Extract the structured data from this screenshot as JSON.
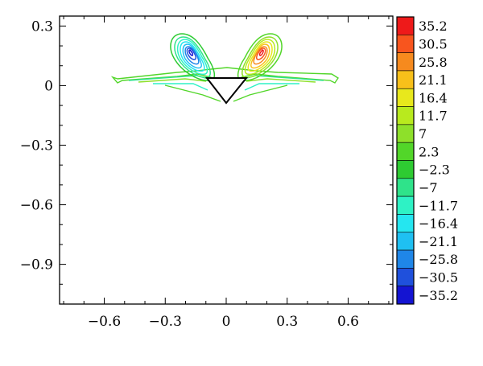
{
  "chart_data": {
    "type": "contour",
    "title": "",
    "xlabel": "",
    "ylabel": "",
    "xlim": [
      -0.82,
      0.82
    ],
    "ylim": [
      -1.1,
      0.35
    ],
    "x_ticks": [
      {
        "value": -0.6,
        "label": "−0.6"
      },
      {
        "value": -0.3,
        "label": "−0.3"
      },
      {
        "value": 0,
        "label": "0"
      },
      {
        "value": 0.3,
        "label": "0.3"
      },
      {
        "value": 0.6,
        "label": "0.6"
      }
    ],
    "y_ticks": [
      {
        "value": 0.3,
        "label": "0.3"
      },
      {
        "value": 0,
        "label": "0"
      },
      {
        "value": -0.3,
        "label": "−0.3"
      },
      {
        "value": -0.6,
        "label": "−0.6"
      },
      {
        "value": -0.9,
        "label": "−0.9"
      }
    ],
    "levels": [
      35.2,
      30.5,
      25.8,
      21.1,
      16.4,
      11.7,
      7,
      2.3,
      -2.3,
      -7,
      -11.7,
      -16.4,
      -21.1,
      -25.8,
      -30.5,
      -35.2
    ],
    "colorbar": {
      "labels": [
        "35.2",
        "30.5",
        "25.8",
        "21.1",
        "16.4",
        "11.7",
        "7",
        "2.3",
        "−2.3",
        "−7",
        "−11.7",
        "−16.4",
        "−21.1",
        "−25.8",
        "−30.5",
        "−35.2"
      ],
      "colors": [
        "#ee1a1a",
        "#f8551e",
        "#f68a1e",
        "#f8c01a",
        "#e8e81c",
        "#b8ea1e",
        "#8ee02a",
        "#52d629",
        "#2ecb32",
        "#2fe38a",
        "#2ef2c5",
        "#25e6f0",
        "#1fc0f2",
        "#1f86e8",
        "#1f50dc",
        "#1414d2"
      ]
    },
    "body": {
      "type": "triangle",
      "vertices": [
        [
          -0.1,
          0.04
        ],
        [
          0.1,
          0.04
        ],
        [
          0,
          -0.09
        ]
      ]
    },
    "structures": [
      {
        "name": "negative lobe",
        "side": "left",
        "center": [
          -0.17,
          0.2
        ],
        "min_level": -35.2
      },
      {
        "name": "positive lobe",
        "side": "right",
        "center": [
          0.17,
          0.2
        ],
        "max_level": 35.2
      },
      {
        "name": "wake",
        "side": "both",
        "extent": [
          -0.55,
          0.55
        ],
        "level": 2.3
      }
    ],
    "grid": false,
    "legend": "colorbar-right"
  }
}
